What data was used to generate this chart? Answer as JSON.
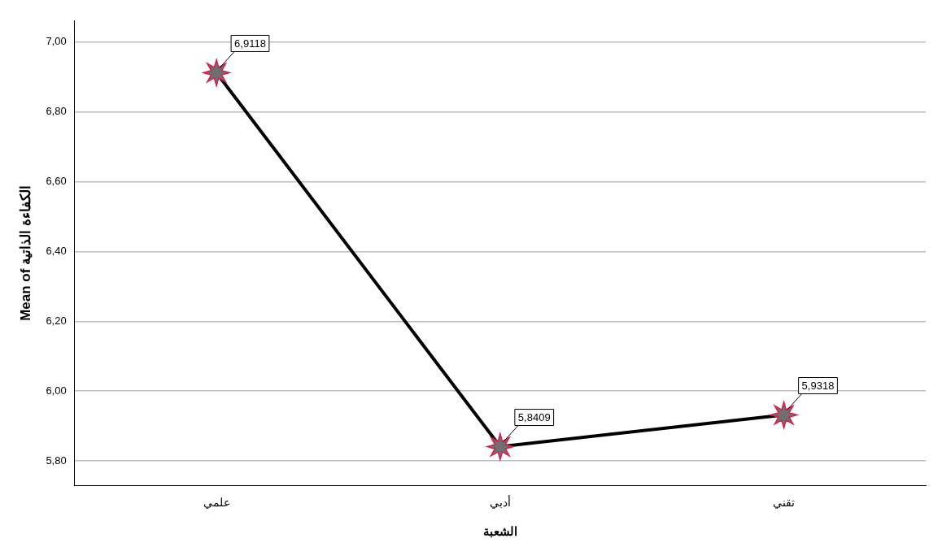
{
  "chart_data": {
    "type": "line",
    "xlabel": "الشعبة",
    "ylabel": "Mean of الكفاءة الذاتية",
    "categories": [
      "علمي",
      "أدبي",
      "تقني"
    ],
    "series": [
      {
        "color": "#000000",
        "values": [
          6.9118,
          5.8409,
          5.9318
        ],
        "value_labels": [
          "6,9118",
          "5,8409",
          "5,9318"
        ]
      }
    ],
    "ylim": [
      5.73,
      7.06
    ],
    "yticks": [
      {
        "value": 5.8,
        "label": "5,80"
      },
      {
        "value": 6.0,
        "label": "6,00"
      },
      {
        "value": 6.2,
        "label": "6,20"
      },
      {
        "value": 6.4,
        "label": "6,40"
      },
      {
        "value": 6.6,
        "label": "6,60"
      },
      {
        "value": 6.8,
        "label": "6,80"
      },
      {
        "value": 7.0,
        "label": "7,00"
      }
    ],
    "grid": "y",
    "marker": "star",
    "line_style": "solid"
  }
}
